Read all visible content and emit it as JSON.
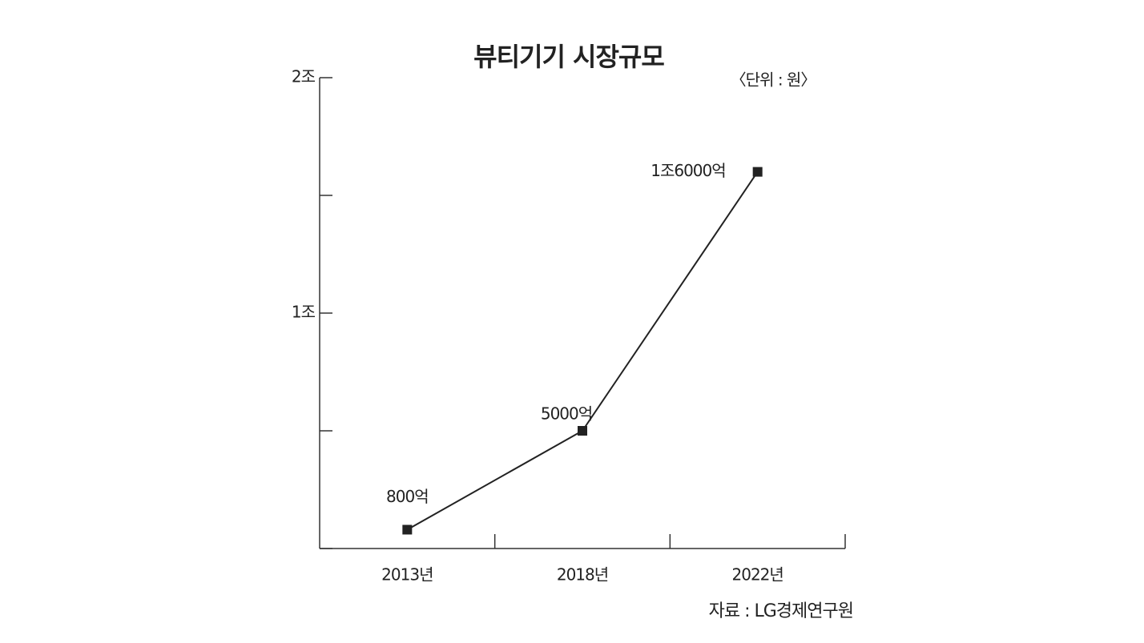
{
  "chart_data": {
    "type": "line",
    "title": "뷰티기기 시장규모",
    "unit_note": "〈단위 : 원〉",
    "source": "자료 : LG경제연구원",
    "categories": [
      "2013년",
      "2018년",
      "2022년"
    ],
    "values": [
      0.08,
      0.5,
      1.6
    ],
    "value_labels": [
      "800억",
      "5000억",
      "1조6000억"
    ],
    "color": "#222222",
    "ylim": [
      0,
      2
    ],
    "yticks": [
      {
        "value": 1,
        "label": "1조"
      },
      {
        "value": 2,
        "label": "2조"
      }
    ],
    "minor_yticks": [
      0,
      0.5,
      1.5
    ],
    "grid": false
  }
}
